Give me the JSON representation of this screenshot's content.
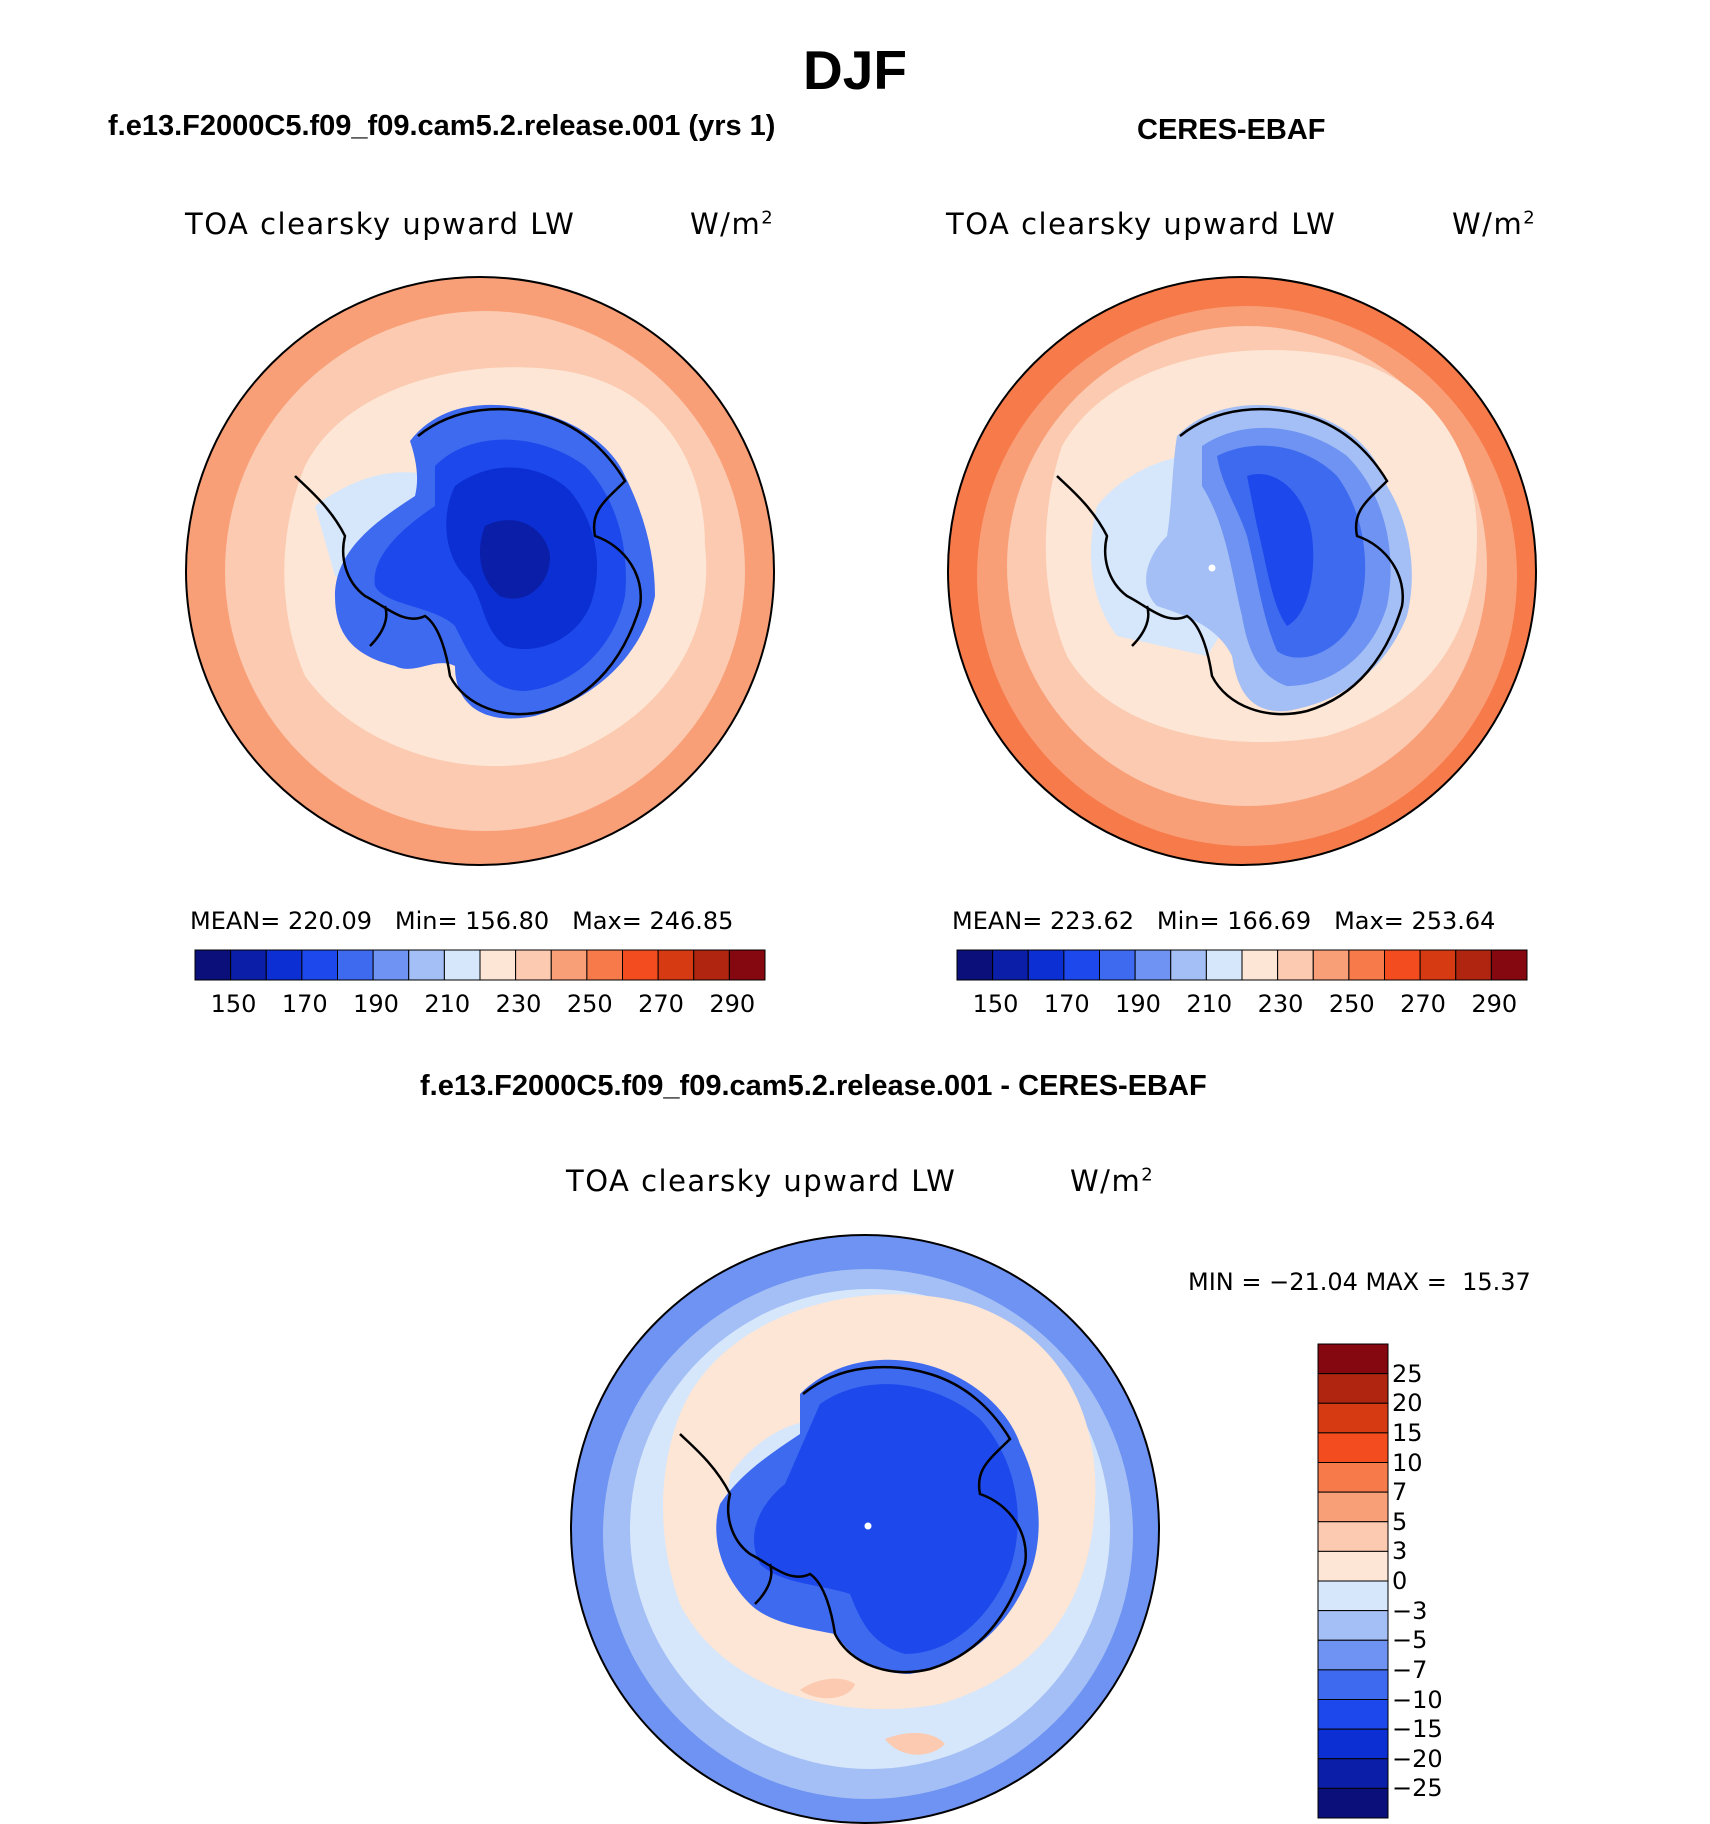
{
  "figure": {
    "season": "DJF",
    "variable": "TOA clearsky upward LW",
    "units": "W/m",
    "units_sup": "2"
  },
  "panels": {
    "model": {
      "title": "f.e13.F2000C5.f09_f09.cam5.2.release.001 (yrs 1)",
      "mean_label": "MEAN=",
      "mean": "220.09",
      "min_label": "Min=",
      "min": "156.80",
      "max_label": "Max=",
      "max": "246.85"
    },
    "obs": {
      "title": "CERES-EBAF",
      "mean_label": "MEAN=",
      "mean": "223.62",
      "min_label": "Min=",
      "min": "166.69",
      "max_label": "Max=",
      "max": "253.64"
    },
    "diff": {
      "title": "f.e13.F2000C5.f09_f09.cam5.2.release.001 - CERES-EBAF",
      "minmax_text": "MIN = −21.04 MAX =  15.37"
    }
  },
  "colorbars": {
    "abs": {
      "tick_labels": [
        "150",
        "170",
        "190",
        "210",
        "230",
        "250",
        "270",
        "290"
      ],
      "colors": [
        "#0a0f7a",
        "#0a1ea8",
        "#0b2fd2",
        "#1c48ec",
        "#3e6af0",
        "#6e93f2",
        "#a4bff5",
        "#d6e6fb",
        "#fde6d5",
        "#fbcab0",
        "#f99f78",
        "#f77a4a",
        "#f34c1f",
        "#d63a12",
        "#b02510",
        "#85070f"
      ]
    },
    "diff": {
      "tick_labels": [
        "25",
        "20",
        "15",
        "10",
        "7",
        "5",
        "3",
        "0",
        "−3",
        "−5",
        "−7",
        "−10",
        "−15",
        "−20",
        "−25"
      ],
      "colors": [
        "#85070f",
        "#b02510",
        "#d63a12",
        "#f34c1f",
        "#f77a4a",
        "#f99f78",
        "#fbcab0",
        "#fde6d5",
        "#d6e6fb",
        "#a4bff5",
        "#6e93f2",
        "#3e6af0",
        "#1c48ec",
        "#0b2fd2",
        "#0a1ea8",
        "#0a0f7a"
      ]
    }
  }
}
